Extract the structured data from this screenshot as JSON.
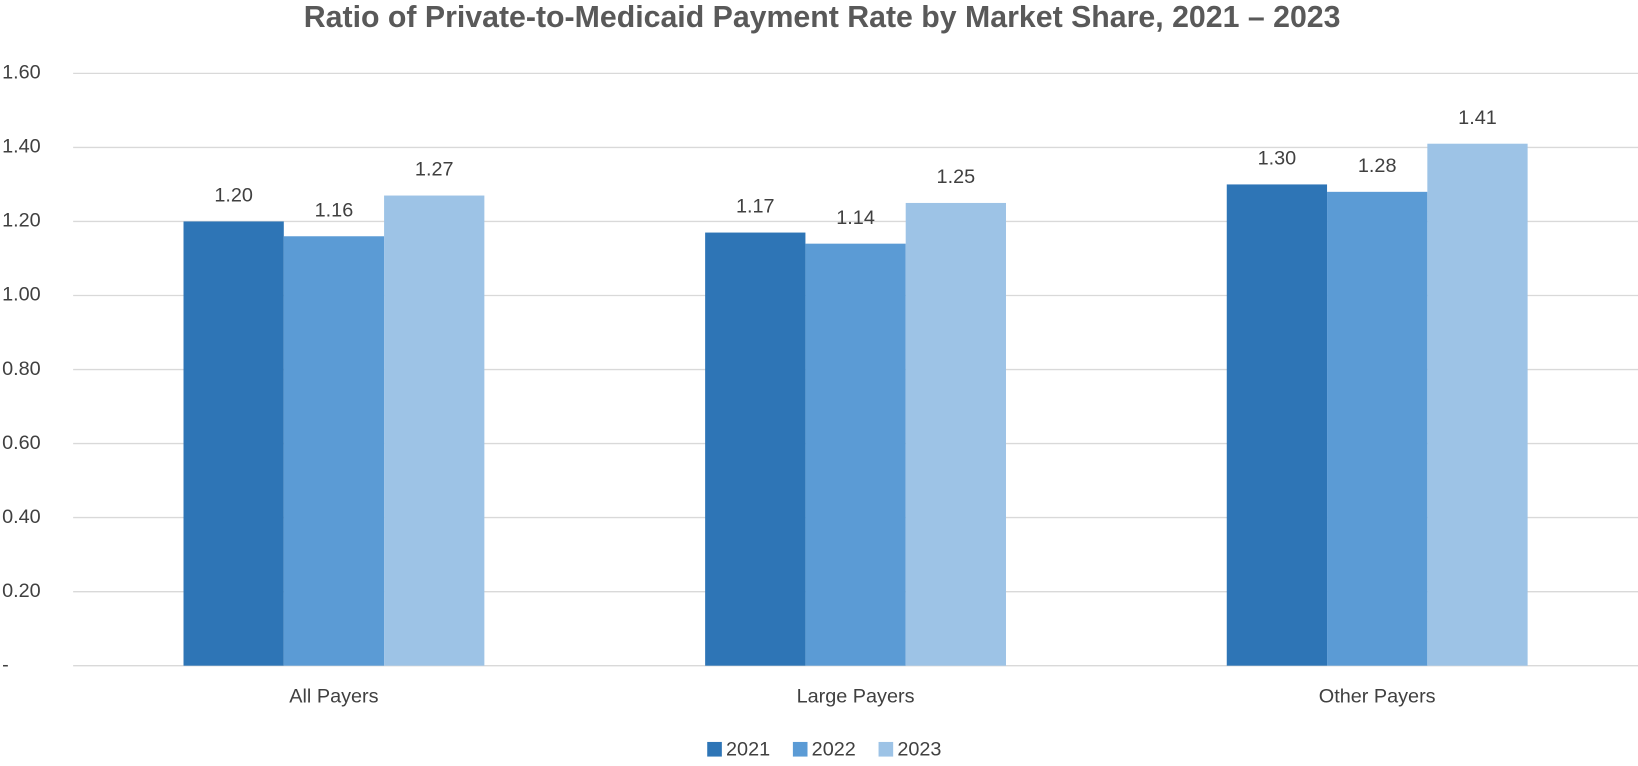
{
  "chart_data": {
    "type": "bar",
    "title": "Ratio of Private-to-Medicaid Payment Rate by Market Share, 2021 – 2023",
    "categories": [
      "All Payers",
      "Large Payers",
      "Other Payers"
    ],
    "series": [
      {
        "name": "2021",
        "color": "#2e75b6",
        "values": [
          1.2,
          1.17,
          1.3
        ],
        "value_labels": [
          "1.20",
          "1.17",
          "1.30"
        ]
      },
      {
        "name": "2022",
        "color": "#5b9bd5",
        "values": [
          1.16,
          1.14,
          1.28
        ],
        "value_labels": [
          "1.16",
          "1.14",
          "1.28"
        ]
      },
      {
        "name": "2023",
        "color": "#9dc3e6",
        "values": [
          1.27,
          1.25,
          1.41
        ],
        "value_labels": [
          "1.27",
          "1.25",
          "1.41"
        ]
      }
    ],
    "ylim": [
      0,
      1.6
    ],
    "yticks": [
      {
        "value": 0,
        "label": "-"
      },
      {
        "value": 0.2,
        "label": "0.20"
      },
      {
        "value": 0.4,
        "label": "0.40"
      },
      {
        "value": 0.6,
        "label": "0.60"
      },
      {
        "value": 0.8,
        "label": "0.80"
      },
      {
        "value": 1.0,
        "label": "1.00"
      },
      {
        "value": 1.2,
        "label": "1.20"
      },
      {
        "value": 1.4,
        "label": "1.40"
      },
      {
        "value": 1.6,
        "label": "1.60"
      }
    ],
    "grid": true,
    "legend": "bottom"
  }
}
